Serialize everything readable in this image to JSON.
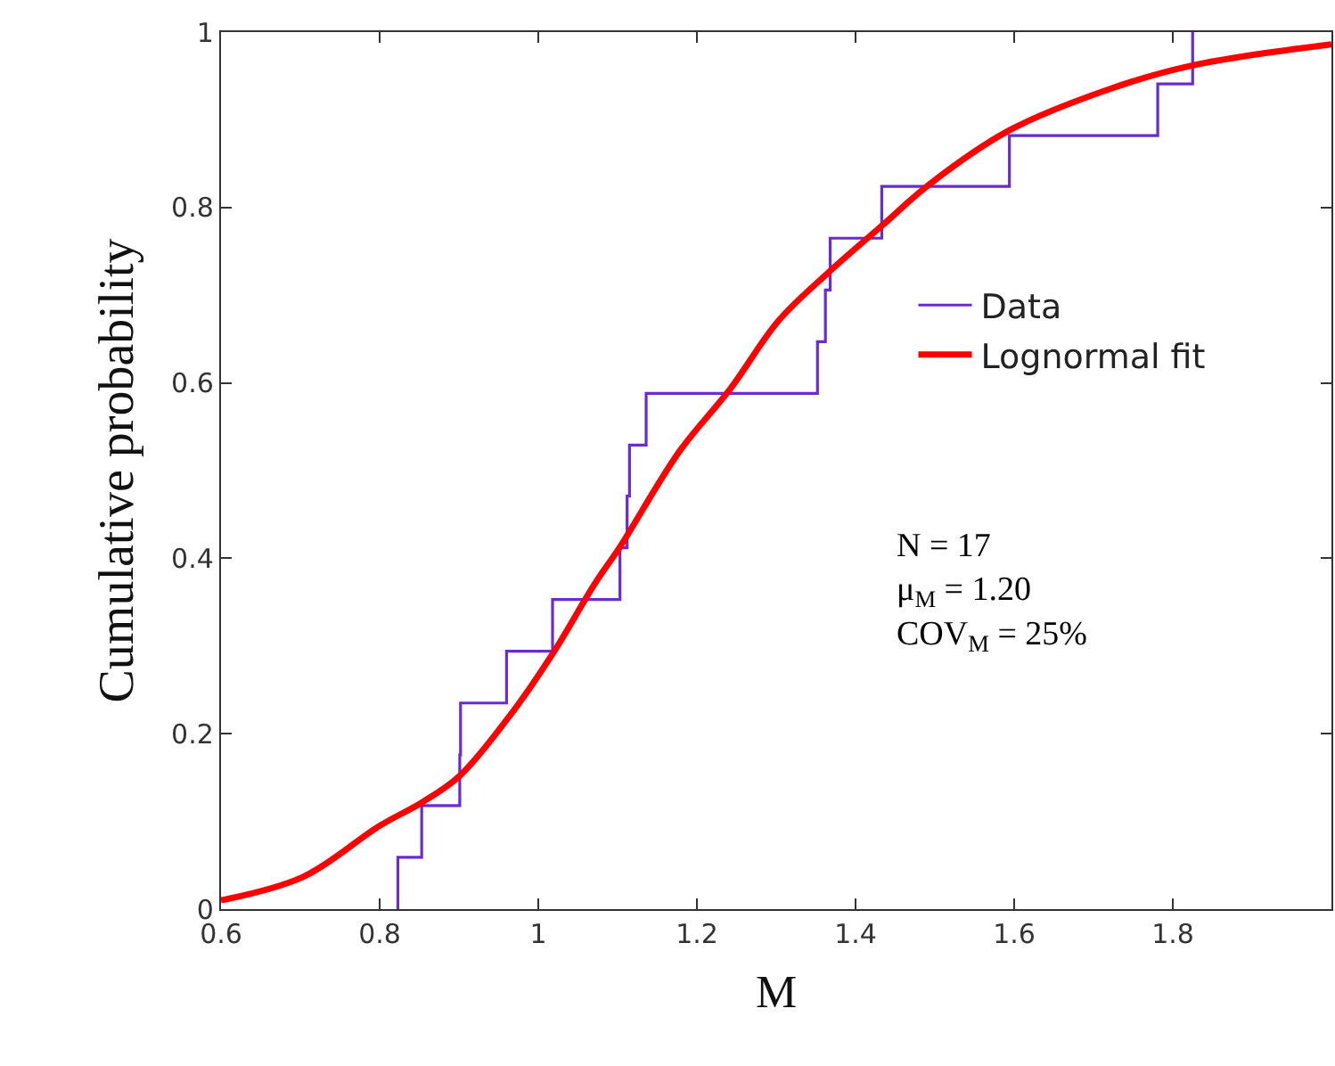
{
  "chart_data": {
    "type": "line",
    "xlabel": "M",
    "ylabel": "Cumulative probability",
    "xlim": [
      0.6,
      2.0
    ],
    "xticks": [
      0.6,
      0.8,
      1,
      1.2,
      1.4,
      1.6,
      1.8
    ],
    "ylim": [
      0,
      1
    ],
    "yticks": [
      0,
      {
        "value": 0.2,
        "label": "0.2"
      },
      {
        "value": 0.4,
        "label": "0.4"
      },
      {
        "value": 0.6,
        "label": "0.6"
      },
      {
        "value": 0.8,
        "label": "0.8"
      },
      1
    ],
    "legend": "right",
    "marker": "none",
    "series": [
      {
        "name": "Data",
        "type": "step",
        "color": "#6a2bd0",
        "x": [
          0.823,
          0.823,
          0.853,
          0.901,
          0.902,
          0.96,
          1.018,
          1.103,
          1.112,
          1.115,
          1.136,
          1.352,
          1.362,
          1.368,
          1.433,
          1.594,
          1.781,
          1.825
        ],
        "values": [
          0,
          0.059,
          0.118,
          0.176,
          0.235,
          0.294,
          0.353,
          0.412,
          0.471,
          0.529,
          0.588,
          0.647,
          0.706,
          0.765,
          0.824,
          0.882,
          0.941,
          1.0
        ]
      },
      {
        "name": "Lognormal fit",
        "color": "#ff0000",
        "x": [
          0.6,
          0.704,
          0.8,
          0.854,
          0.901,
          0.967,
          1.018,
          1.072,
          1.103,
          1.178,
          1.242,
          1.303,
          1.366,
          1.433,
          1.494,
          1.594,
          1.72,
          1.825,
          2.0
        ],
        "values": [
          0.01,
          0.037,
          0.095,
          0.122,
          0.152,
          0.224,
          0.291,
          0.372,
          0.413,
          0.522,
          0.593,
          0.671,
          0.726,
          0.779,
          0.827,
          0.888,
          0.935,
          0.962,
          0.986
        ]
      }
    ],
    "annotations": [
      "N = 17",
      "μ$_{M}$ = 1.20",
      "COV$_{M}$ = 25%"
    ]
  }
}
